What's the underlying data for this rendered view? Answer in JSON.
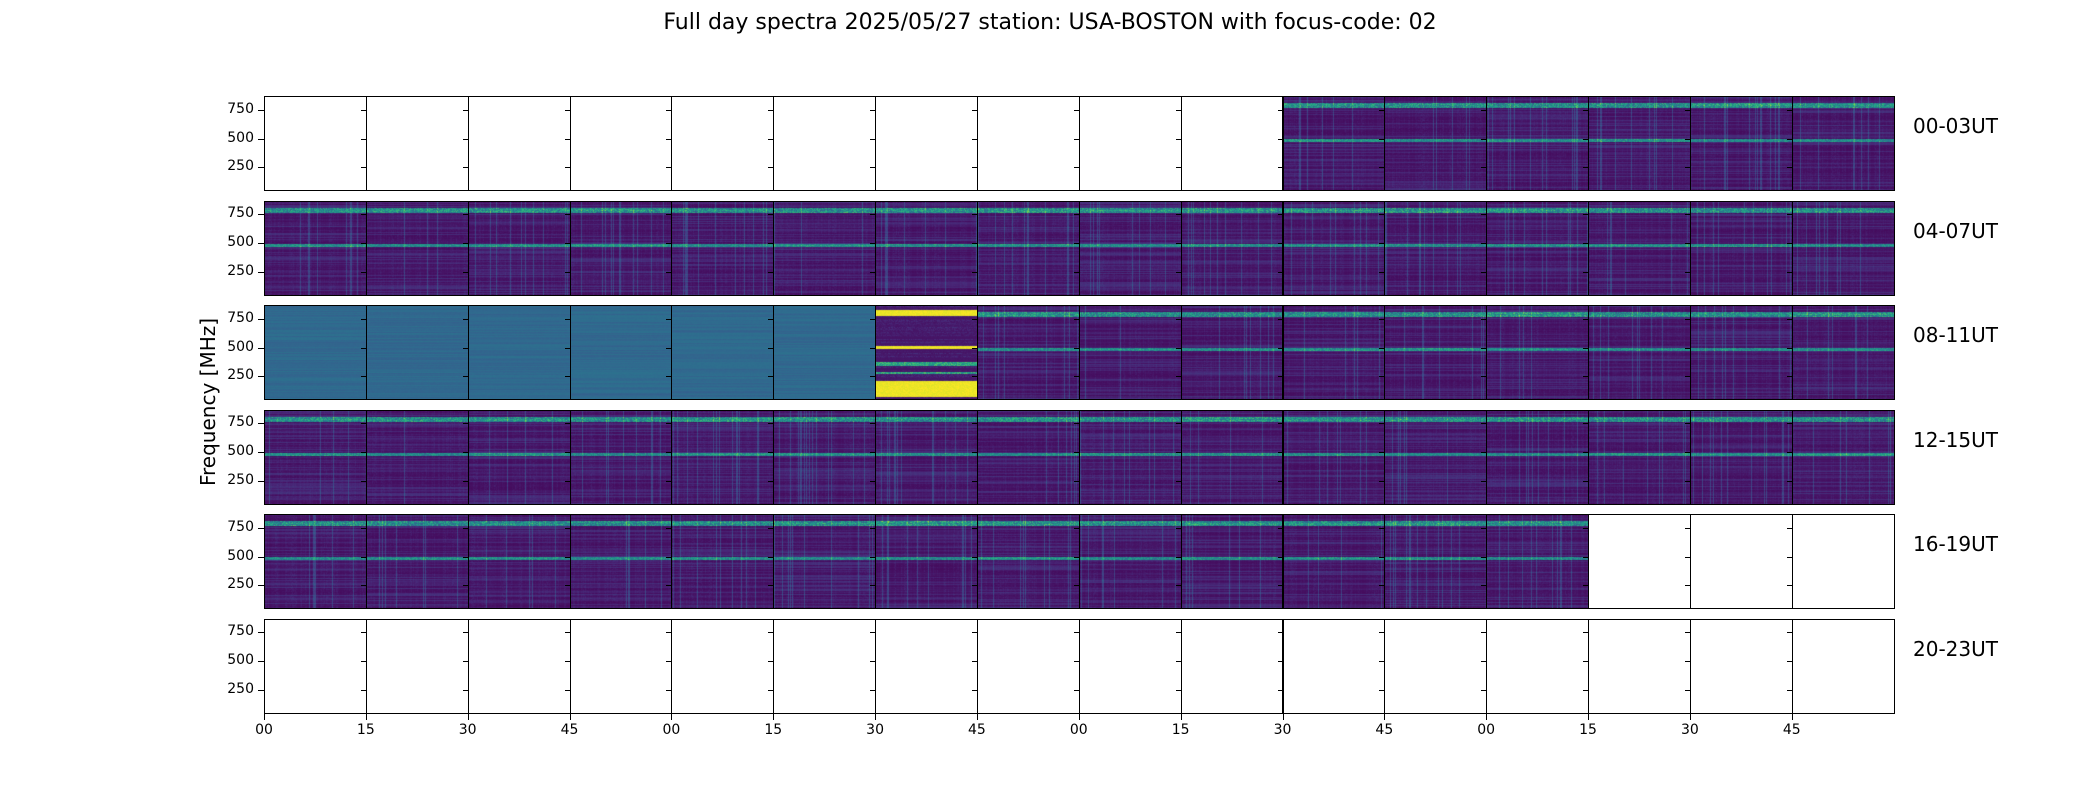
{
  "figure": {
    "title": "Full day spectra 2025/05/27 station: USA-BOSTON with focus-code: 02",
    "ylabel": "Frequency [MHz]"
  },
  "chart_data": {
    "type": "heatmap",
    "title": "Full day spectra 2025/05/27 station: USA-BOSTON with focus-code: 02",
    "ylabel": "Frequency [MHz]",
    "xlabel": "",
    "colormap": "viridis",
    "ylim": [
      45,
      870
    ],
    "yticks": [
      250,
      500,
      750
    ],
    "xtick_labels": [
      "00",
      "15",
      "30",
      "45",
      "00",
      "15",
      "30",
      "45",
      "00",
      "15",
      "30",
      "45",
      "00",
      "15",
      "30",
      "45"
    ],
    "panel_minutes": 15,
    "rows": [
      {
        "label": "00-03UT",
        "panels": [
          "empty",
          "empty",
          "empty",
          "empty",
          "empty",
          "empty",
          "empty",
          "empty",
          "empty",
          "empty",
          "normal",
          "normal",
          "normal",
          "normal",
          "normal",
          "normal"
        ]
      },
      {
        "label": "04-07UT",
        "panels": [
          "normal",
          "normal",
          "normal",
          "normal",
          "normal",
          "normal",
          "normal",
          "normal",
          "normal",
          "normal",
          "normal",
          "normal",
          "normal",
          "normal",
          "normal",
          "normal"
        ]
      },
      {
        "label": "08-11UT",
        "panels": [
          "flat",
          "flat",
          "flat",
          "flat",
          "flat",
          "flat",
          "bright",
          "normal",
          "normal",
          "normal",
          "normal",
          "normal",
          "normal",
          "normal",
          "normal",
          "normal"
        ]
      },
      {
        "label": "12-15UT",
        "panels": [
          "normal",
          "normal",
          "normal",
          "normal",
          "normal",
          "normal",
          "normal",
          "normal",
          "normal",
          "normal",
          "normal",
          "normal",
          "normal",
          "normal",
          "normal",
          "normal"
        ]
      },
      {
        "label": "16-19UT",
        "panels": [
          "normal",
          "normal",
          "normal",
          "normal",
          "normal",
          "normal",
          "normal",
          "normal",
          "normal",
          "normal",
          "normal",
          "normal",
          "normal",
          "empty",
          "empty",
          "empty"
        ]
      },
      {
        "label": "20-23UT",
        "panels": [
          "empty",
          "empty",
          "empty",
          "empty",
          "empty",
          "empty",
          "empty",
          "empty",
          "empty",
          "empty",
          "empty",
          "empty",
          "empty",
          "empty",
          "empty",
          "empty"
        ]
      }
    ],
    "colors": {
      "low": "#440154",
      "mid": "#3b528b",
      "teal": "#21918c",
      "green": "#5ec962",
      "high": "#fde725"
    }
  }
}
